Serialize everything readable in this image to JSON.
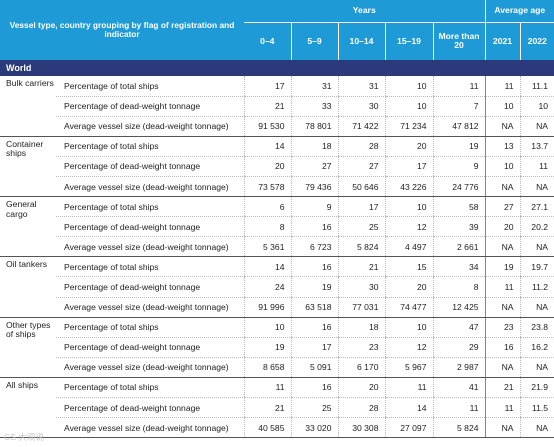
{
  "header": {
    "left_label": "Vessel type, country grouping by flag of registration and indicator",
    "years_label": "Years",
    "avg_label": "Average age",
    "year_cols": [
      "0–4",
      "5–9",
      "10–14",
      "15–19",
      "More than 20"
    ],
    "avg_cols": [
      "2021",
      "2022"
    ]
  },
  "section": "World",
  "groups": [
    {
      "name": "Bulk carriers",
      "rows": [
        {
          "indicator": "Percentage of total ships",
          "values": [
            "17",
            "31",
            "31",
            "10",
            "11"
          ],
          "avg": [
            "11",
            "11.1"
          ]
        },
        {
          "indicator": "Percentage of dead-weight tonnage",
          "values": [
            "21",
            "33",
            "30",
            "10",
            "7"
          ],
          "avg": [
            "10",
            "10"
          ]
        },
        {
          "indicator": "Average vessel size (dead-weight tonnage)",
          "values": [
            "91 530",
            "78 801",
            "71 422",
            "71 234",
            "47 812"
          ],
          "avg": [
            "NA",
            "NA"
          ]
        }
      ]
    },
    {
      "name": "Container ships",
      "rows": [
        {
          "indicator": "Percentage of total ships",
          "values": [
            "14",
            "18",
            "28",
            "20",
            "19"
          ],
          "avg": [
            "13",
            "13.7"
          ]
        },
        {
          "indicator": "Percentage of dead-weight tonnage",
          "values": [
            "20",
            "27",
            "27",
            "17",
            "9"
          ],
          "avg": [
            "10",
            "11"
          ]
        },
        {
          "indicator": "Average vessel size (dead-weight tonnage)",
          "values": [
            "73 578",
            "79 436",
            "50 646",
            "43 226",
            "24 776"
          ],
          "avg": [
            "NA",
            "NA"
          ]
        }
      ]
    },
    {
      "name": "General cargo",
      "rows": [
        {
          "indicator": "Percentage of total ships",
          "values": [
            "6",
            "9",
            "17",
            "10",
            "58"
          ],
          "avg": [
            "27",
            "27.1"
          ]
        },
        {
          "indicator": "Percentage of dead-weight tonnage",
          "values": [
            "8",
            "16",
            "25",
            "12",
            "39"
          ],
          "avg": [
            "20",
            "20.2"
          ]
        },
        {
          "indicator": "Average vessel size (dead-weight tonnage)",
          "values": [
            "5 361",
            "6 723",
            "5 824",
            "4 497",
            "2 661"
          ],
          "avg": [
            "NA",
            "NA"
          ]
        }
      ]
    },
    {
      "name": "Oil tankers",
      "rows": [
        {
          "indicator": "Percentage of total ships",
          "values": [
            "14",
            "16",
            "21",
            "15",
            "34"
          ],
          "avg": [
            "19",
            "19.7"
          ]
        },
        {
          "indicator": "Percentage of dead-weight tonnage",
          "values": [
            "24",
            "19",
            "30",
            "20",
            "8"
          ],
          "avg": [
            "11",
            "11.2"
          ]
        },
        {
          "indicator": "Average vessel size (dead-weight tonnage)",
          "values": [
            "91 996",
            "63 518",
            "77 031",
            "74 477",
            "12 425"
          ],
          "avg": [
            "NA",
            "NA"
          ]
        }
      ]
    },
    {
      "name": "Other types of ships",
      "rows": [
        {
          "indicator": "Percentage of total ships",
          "values": [
            "10",
            "16",
            "18",
            "10",
            "47"
          ],
          "avg": [
            "23",
            "23.8"
          ]
        },
        {
          "indicator": "Percentage of dead-weight tonnage",
          "values": [
            "19",
            "17",
            "23",
            "12",
            "29"
          ],
          "avg": [
            "16",
            "16.2"
          ]
        },
        {
          "indicator": "Average vessel size (dead-weight tonnage)",
          "values": [
            "8 658",
            "5 091",
            "6 170",
            "5 967",
            "2 987"
          ],
          "avg": [
            "NA",
            "NA"
          ]
        }
      ]
    },
    {
      "name": "All ships",
      "rows": [
        {
          "indicator": "Percentage of total ships",
          "values": [
            "11",
            "16",
            "20",
            "11",
            "41"
          ],
          "avg": [
            "21",
            "21.9"
          ]
        },
        {
          "indicator": "Percentage of dead-weight tonnage",
          "values": [
            "21",
            "25",
            "28",
            "14",
            "11"
          ],
          "avg": [
            "11",
            "11.5"
          ]
        },
        {
          "indicator": "Average vessel size (dead-weight tonnage)",
          "values": [
            "40 585",
            "33 020",
            "30 308",
            "27 097",
            "5 824"
          ],
          "avg": [
            "NA",
            "NA"
          ]
        }
      ]
    }
  ],
  "watermark": "CS 大观说"
}
